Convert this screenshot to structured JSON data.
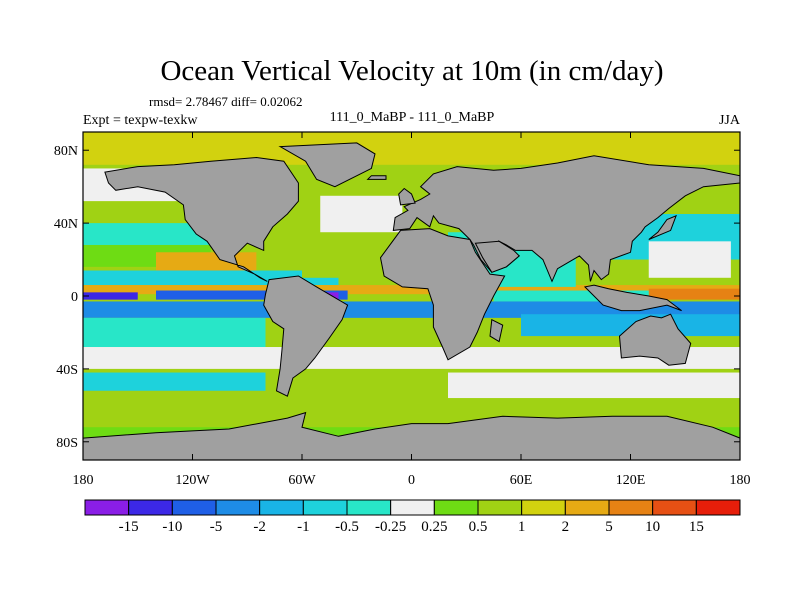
{
  "chart_data": {
    "type": "heatmap",
    "title": "Ocean Vertical Velocity at 10m (in cm/day)",
    "stats": "rmsd= 2.78467  diff= 0.02062",
    "experiment": "Expt = texpw-texkw",
    "case": "111_0_MaBP - 111_0_MaBP",
    "season": "JJA",
    "x_axis": {
      "range": [
        -180,
        180
      ],
      "ticks": [
        -180,
        -120,
        -60,
        0,
        60,
        120,
        180
      ],
      "tick_labels": [
        "180",
        "120W",
        "60W",
        "0",
        "60E",
        "120E",
        "180"
      ]
    },
    "y_axis": {
      "range": [
        -90,
        90
      ],
      "ticks": [
        80,
        40,
        0,
        -40,
        -80
      ],
      "tick_labels": [
        "80N",
        "40N",
        "0",
        "40S",
        "80S"
      ]
    },
    "colorbar": {
      "levels": [
        "-15",
        "-10",
        "-5",
        "-2",
        "-1",
        "-0.5",
        "-0.25",
        "0.25",
        "0.5",
        "1",
        "2",
        "5",
        "10",
        "15"
      ],
      "colors": [
        "#8a1ee6",
        "#3c28e6",
        "#1f5fe6",
        "#1e8ce6",
        "#19b4e6",
        "#1ed2dc",
        "#28e6c8",
        "#f0f0f0",
        "#6edc14",
        "#a0d214",
        "#d2d20f",
        "#e6aa14",
        "#e68214",
        "#e65014",
        "#e61e0a"
      ]
    },
    "land_color": "#a0a0a0",
    "field_description": "strong negative (blue/purple) band along the equator in the Pacific and Atlantic; positive (orange) upwelling bands at about 10N-20N and near the equator in the western Pacific; mostly neutral to weak positive values poleward"
  }
}
